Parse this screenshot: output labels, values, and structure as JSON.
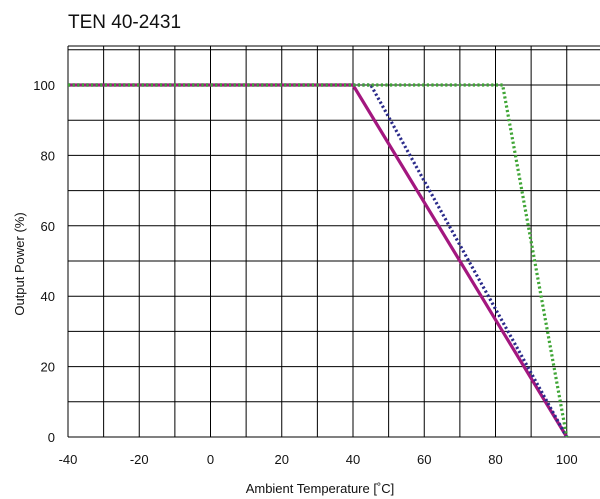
{
  "chart_data": {
    "type": "line",
    "title": "TEN 40-2431",
    "xlabel": "Ambient Temperature [˚C]",
    "ylabel": "Output Power (%)",
    "xlim": [
      -40,
      100
    ],
    "ylim": [
      0,
      100
    ],
    "xticks": [
      -40,
      -20,
      0,
      20,
      40,
      60,
      80,
      100
    ],
    "yticks": [
      0,
      20,
      40,
      60,
      80,
      100
    ],
    "grid": true,
    "series": [
      {
        "color": "#a3177f",
        "style": "solid",
        "x": [
          -40,
          40,
          100
        ],
        "y": [
          100,
          100,
          0
        ]
      },
      {
        "color": "#2a2a8a",
        "style": "dotted",
        "x": [
          -40,
          45,
          100
        ],
        "y": [
          100,
          100,
          0
        ]
      },
      {
        "color": "#3fa535",
        "style": "dotted",
        "x": [
          -40,
          82,
          100
        ],
        "y": [
          100,
          100,
          0
        ]
      }
    ]
  }
}
